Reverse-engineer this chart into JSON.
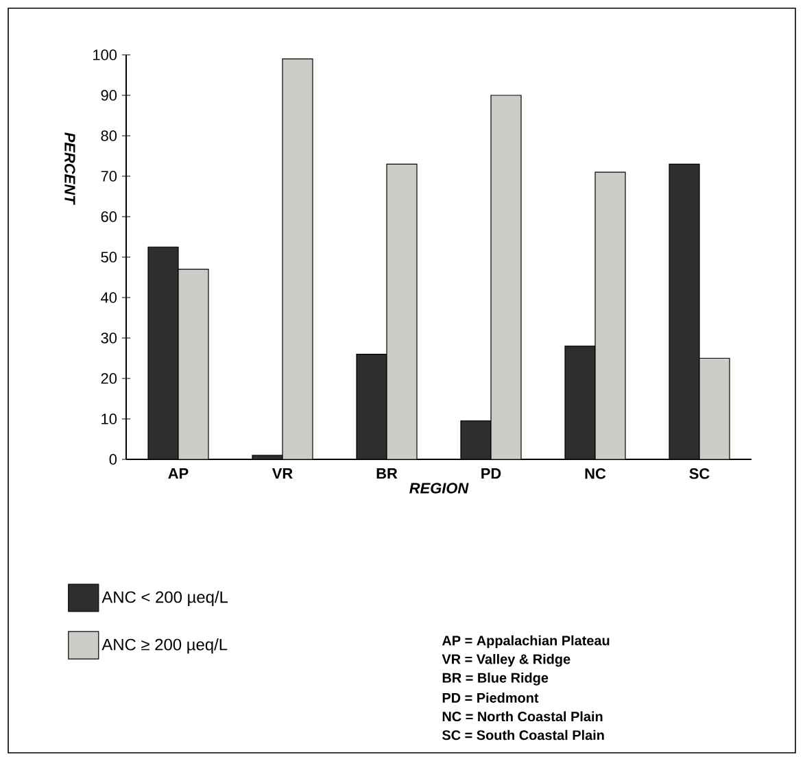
{
  "chart_data": {
    "type": "bar",
    "categories": [
      "AP",
      "VR",
      "BR",
      "PD",
      "NC",
      "SC"
    ],
    "series": [
      {
        "name": "ANC < 200 µeq/L",
        "color": "#2e2e2e",
        "values": [
          52.5,
          1,
          26,
          9.5,
          28,
          73
        ]
      },
      {
        "name": "ANC ≥ 200 µeq/L",
        "color": "#cdcdc8",
        "values": [
          47,
          99,
          73,
          90,
          71,
          25
        ]
      }
    ],
    "xlabel": "REGION",
    "ylabel": "PERCENT",
    "ylim": [
      0,
      100
    ],
    "yticks": [
      0,
      10,
      20,
      30,
      40,
      50,
      60,
      70,
      80,
      90,
      100
    ],
    "grid": false,
    "legend": "bottom left",
    "annotations": [
      "AP = Appalachian Plateau",
      "VR = Valley & Ridge",
      "BR = Blue Ridge",
      "PD = Piedmont",
      "NC = North Coastal Plain",
      "SC = South Coastal Plain"
    ]
  }
}
